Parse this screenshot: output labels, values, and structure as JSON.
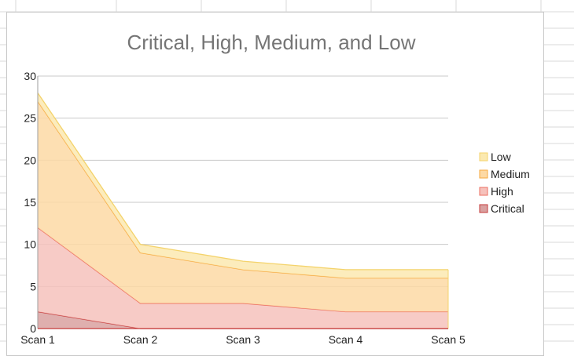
{
  "colors": {
    "gridline": "#c9c9c9",
    "sheet_grid": "#d9d9d9",
    "Low": {
      "fill": "#fbe9b0",
      "stroke": "#f4d36b"
    },
    "Medium": {
      "fill": "#fdd9a4",
      "stroke": "#f6a93f"
    },
    "High": {
      "fill": "#f6c2bc",
      "stroke": "#ec6f62"
    },
    "Critical": {
      "fill": "#d9a1a0",
      "stroke": "#c53b3b"
    }
  },
  "chart_data": {
    "type": "area",
    "stacked": true,
    "title": "Critical, High, Medium, and Low",
    "categories": [
      "Scan 1",
      "Scan 2",
      "Scan 3",
      "Scan 4",
      "Scan 5"
    ],
    "series": [
      {
        "name": "Critical",
        "values": [
          2,
          0,
          0,
          0,
          0
        ]
      },
      {
        "name": "High",
        "values": [
          10,
          3,
          3,
          2,
          2
        ]
      },
      {
        "name": "Medium",
        "values": [
          15,
          6,
          4,
          4,
          4
        ]
      },
      {
        "name": "Low",
        "values": [
          1,
          1,
          1,
          1,
          1
        ]
      }
    ],
    "ylim": [
      0,
      30
    ],
    "yticks": [
      "0",
      "5",
      "10",
      "15",
      "20",
      "25",
      "30"
    ],
    "grid": true,
    "legend_position": "right",
    "legend": [
      "Low",
      "Medium",
      "High",
      "Critical"
    ]
  }
}
